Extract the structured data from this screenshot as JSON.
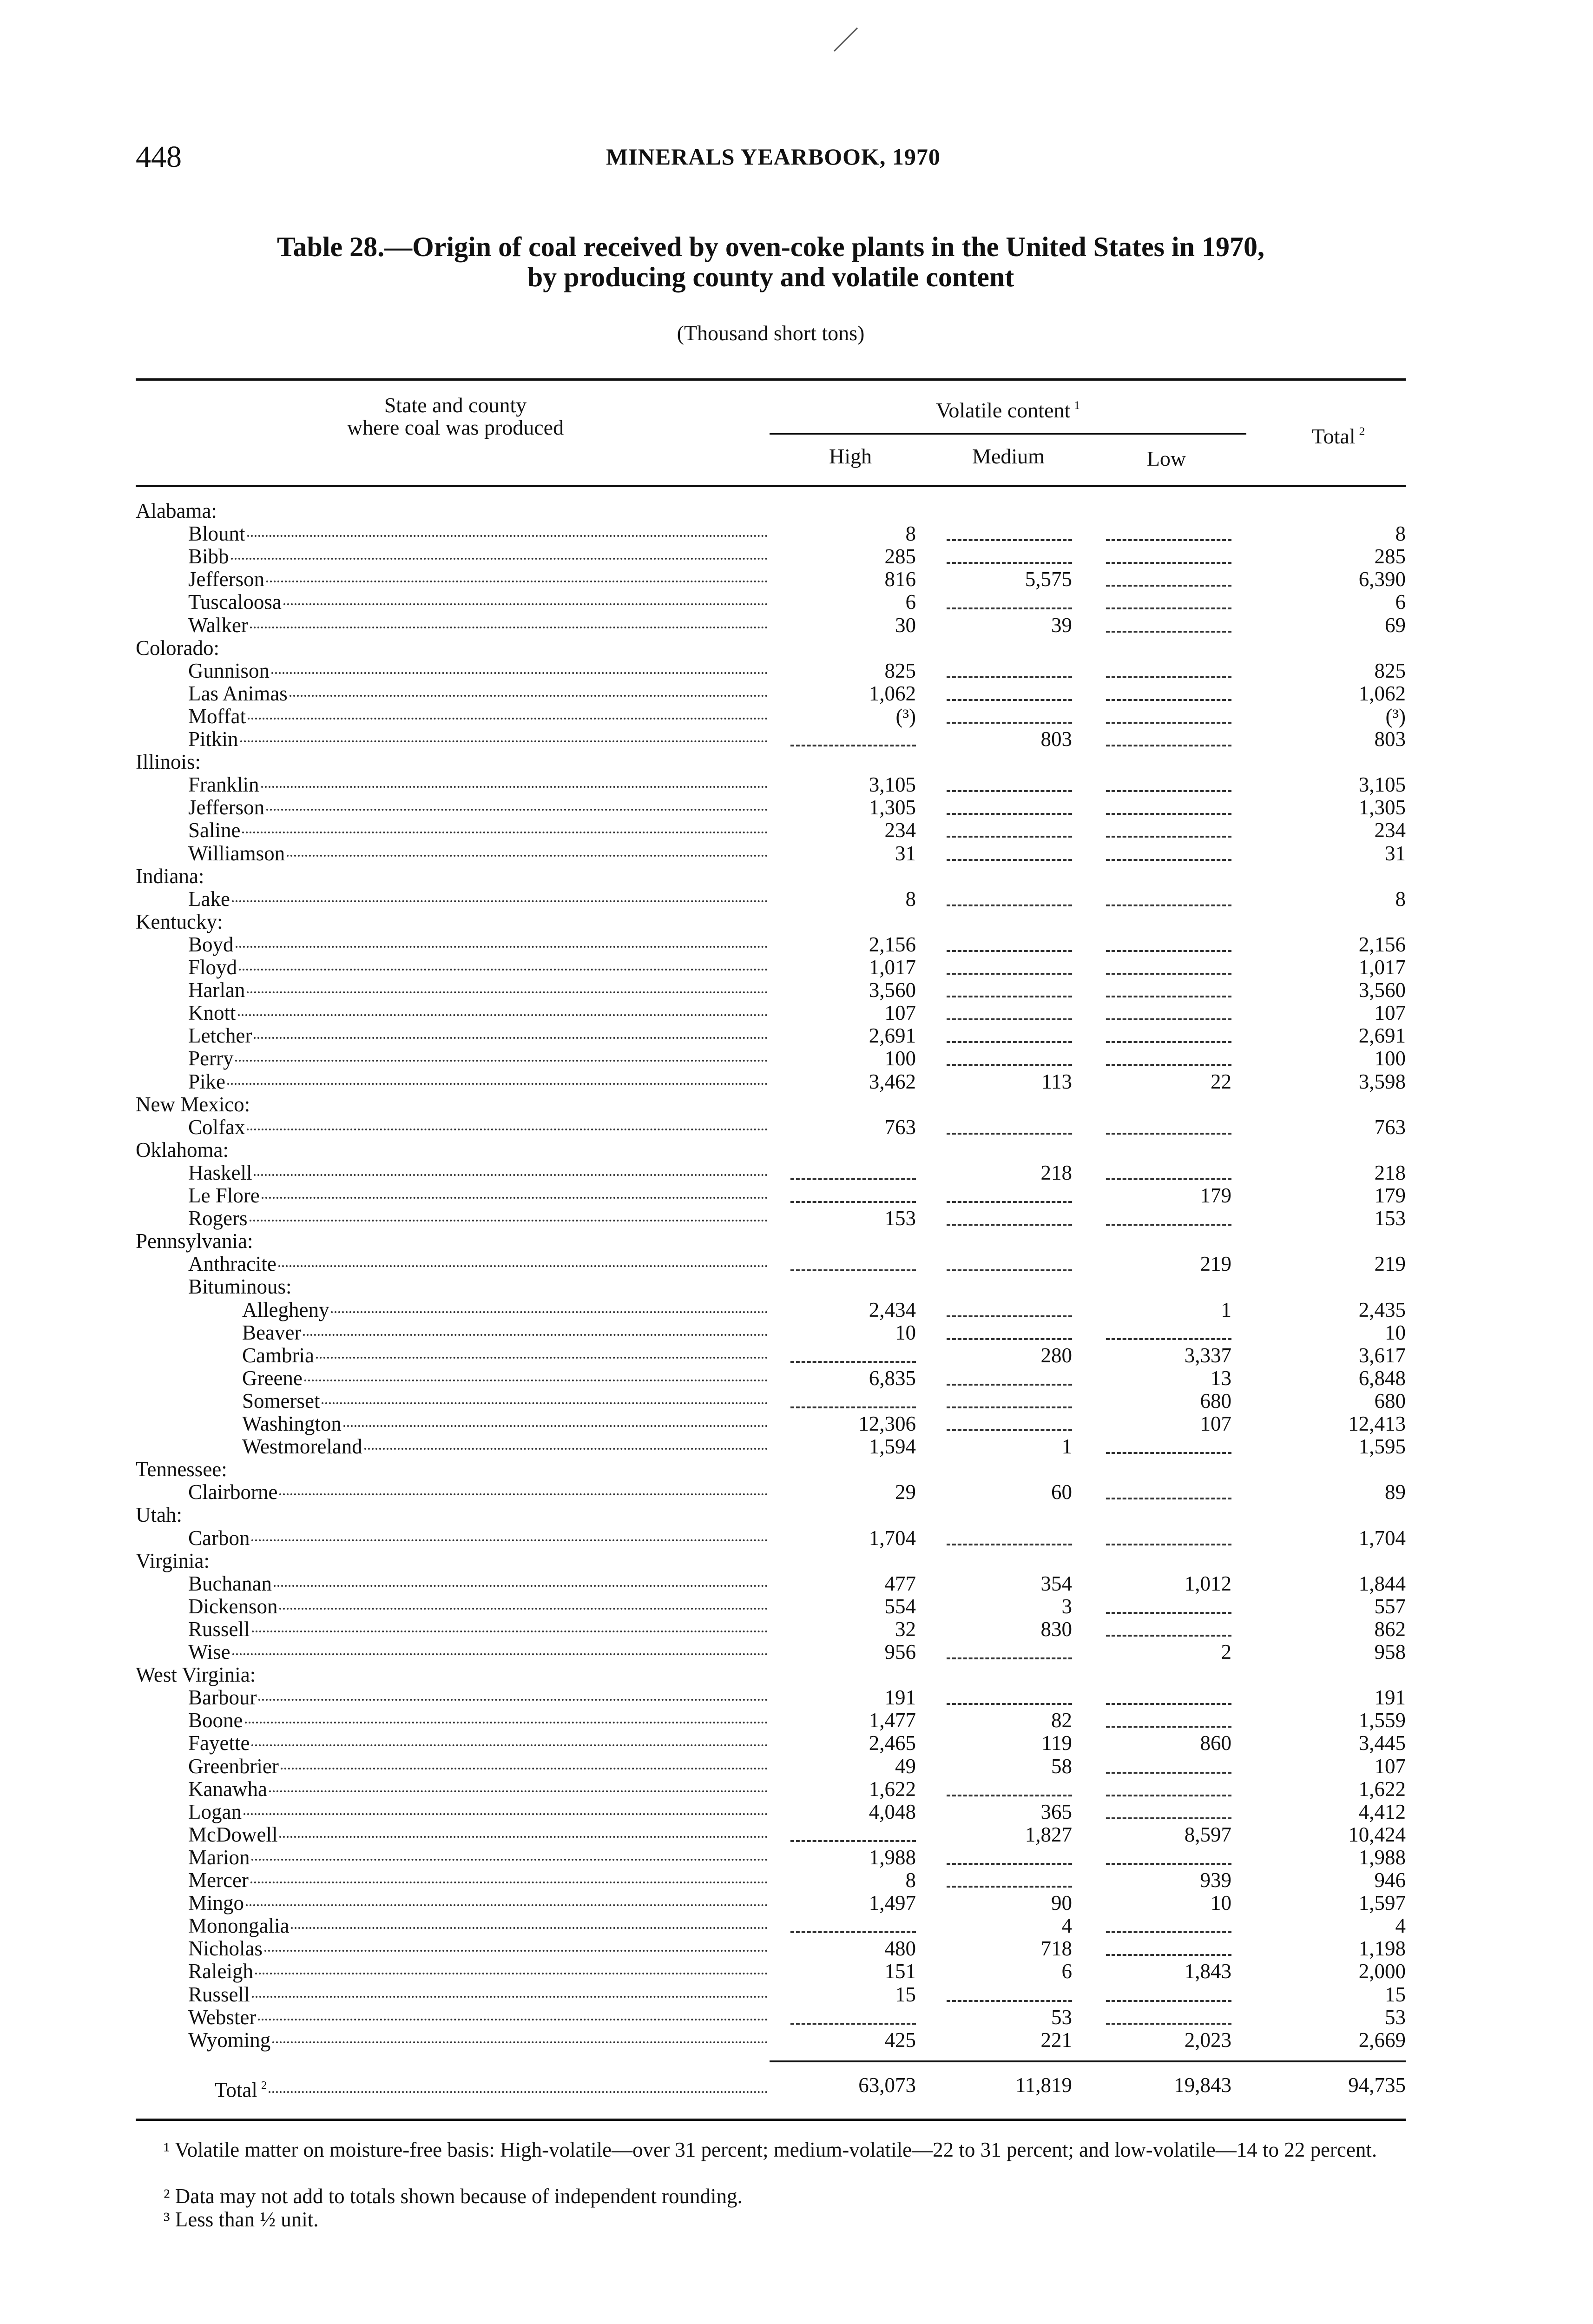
{
  "page": {
    "page_number": "448",
    "running_head": "MINERALS YEARBOOK, 1970",
    "title_line1": "Table 28.—Origin of coal received by oven-coke plants in the United States in 1970,",
    "title_line2": "by producing county and volatile content",
    "units": "(Thousand short tons)"
  },
  "table": {
    "headers": {
      "stub_line1": "State and county",
      "stub_line2": "where coal was produced",
      "volatile": "Volatile content",
      "volatile_note": "1",
      "high": "High",
      "medium": "Medium",
      "low": "Low",
      "total": "Total",
      "total_note": "2"
    },
    "rows": [
      {
        "label": "Alabama:",
        "level": 0
      },
      {
        "label": "Blount",
        "level": 1,
        "high": "8",
        "medium": null,
        "low": null,
        "total": "8"
      },
      {
        "label": "Bibb",
        "level": 1,
        "high": "285",
        "medium": null,
        "low": null,
        "total": "285"
      },
      {
        "label": "Jefferson",
        "level": 1,
        "high": "816",
        "medium": "5,575",
        "low": null,
        "total": "6,390"
      },
      {
        "label": "Tuscaloosa",
        "level": 1,
        "high": "6",
        "medium": null,
        "low": null,
        "total": "6"
      },
      {
        "label": "Walker",
        "level": 1,
        "high": "30",
        "medium": "39",
        "low": null,
        "total": "69"
      },
      {
        "label": "Colorado:",
        "level": 0
      },
      {
        "label": "Gunnison",
        "level": 1,
        "high": "825",
        "medium": null,
        "low": null,
        "total": "825"
      },
      {
        "label": "Las Animas",
        "level": 1,
        "high": "1,062",
        "medium": null,
        "low": null,
        "total": "1,062"
      },
      {
        "label": "Moffat",
        "level": 1,
        "high": "(³)",
        "medium": null,
        "low": null,
        "total": "(³)"
      },
      {
        "label": "Pitkin",
        "level": 1,
        "high": null,
        "medium": "803",
        "low": null,
        "total": "803"
      },
      {
        "label": "Illinois:",
        "level": 0
      },
      {
        "label": "Franklin",
        "level": 1,
        "high": "3,105",
        "medium": null,
        "low": null,
        "total": "3,105"
      },
      {
        "label": "Jefferson",
        "level": 1,
        "high": "1,305",
        "medium": null,
        "low": null,
        "total": "1,305"
      },
      {
        "label": "Saline",
        "level": 1,
        "high": "234",
        "medium": null,
        "low": null,
        "total": "234"
      },
      {
        "label": "Williamson",
        "level": 1,
        "high": "31",
        "medium": null,
        "low": null,
        "total": "31"
      },
      {
        "label": "Indiana:",
        "level": 0
      },
      {
        "label": "Lake",
        "level": 1,
        "high": "8",
        "medium": null,
        "low": null,
        "total": "8"
      },
      {
        "label": "Kentucky:",
        "level": 0
      },
      {
        "label": "Boyd",
        "level": 1,
        "high": "2,156",
        "medium": null,
        "low": null,
        "total": "2,156"
      },
      {
        "label": "Floyd",
        "level": 1,
        "high": "1,017",
        "medium": null,
        "low": null,
        "total": "1,017"
      },
      {
        "label": "Harlan",
        "level": 1,
        "high": "3,560",
        "medium": null,
        "low": null,
        "total": "3,560"
      },
      {
        "label": "Knott",
        "level": 1,
        "high": "107",
        "medium": null,
        "low": null,
        "total": "107"
      },
      {
        "label": "Letcher",
        "level": 1,
        "high": "2,691",
        "medium": null,
        "low": null,
        "total": "2,691"
      },
      {
        "label": "Perry",
        "level": 1,
        "high": "100",
        "medium": null,
        "low": null,
        "total": "100"
      },
      {
        "label": "Pike",
        "level": 1,
        "high": "3,462",
        "medium": "113",
        "low": "22",
        "total": "3,598"
      },
      {
        "label": "New Mexico:",
        "level": 0
      },
      {
        "label": "Colfax",
        "level": 1,
        "high": "763",
        "medium": null,
        "low": null,
        "total": "763"
      },
      {
        "label": "Oklahoma:",
        "level": 0
      },
      {
        "label": "Haskell",
        "level": 1,
        "high": null,
        "medium": "218",
        "low": null,
        "total": "218"
      },
      {
        "label": "Le Flore",
        "level": 1,
        "high": null,
        "medium": null,
        "low": "179",
        "total": "179"
      },
      {
        "label": "Rogers",
        "level": 1,
        "high": "153",
        "medium": null,
        "low": null,
        "total": "153"
      },
      {
        "label": "Pennsylvania:",
        "level": 0
      },
      {
        "label": "Anthracite",
        "level": 1,
        "high": null,
        "medium": null,
        "low": "219",
        "total": "219"
      },
      {
        "label": "Bituminous:",
        "level": 1
      },
      {
        "label": "Allegheny",
        "level": 2,
        "high": "2,434",
        "medium": null,
        "low": "1",
        "total": "2,435"
      },
      {
        "label": "Beaver",
        "level": 2,
        "high": "10",
        "medium": null,
        "low": null,
        "total": "10"
      },
      {
        "label": "Cambria",
        "level": 2,
        "high": null,
        "medium": "280",
        "low": "3,337",
        "total": "3,617"
      },
      {
        "label": "Greene",
        "level": 2,
        "high": "6,835",
        "medium": null,
        "low": "13",
        "total": "6,848"
      },
      {
        "label": "Somerset",
        "level": 2,
        "high": null,
        "medium": null,
        "low": "680",
        "total": "680"
      },
      {
        "label": "Washington",
        "level": 2,
        "high": "12,306",
        "medium": null,
        "low": "107",
        "total": "12,413"
      },
      {
        "label": "Westmoreland",
        "level": 2,
        "high": "1,594",
        "medium": "1",
        "low": null,
        "total": "1,595"
      },
      {
        "label": "Tennessee:",
        "level": 0
      },
      {
        "label": "Clairborne",
        "level": 1,
        "high": "29",
        "medium": "60",
        "low": null,
        "total": "89"
      },
      {
        "label": "Utah:",
        "level": 0
      },
      {
        "label": "Carbon",
        "level": 1,
        "high": "1,704",
        "medium": null,
        "low": null,
        "total": "1,704"
      },
      {
        "label": "Virginia:",
        "level": 0
      },
      {
        "label": "Buchanan",
        "level": 1,
        "high": "477",
        "medium": "354",
        "low": "1,012",
        "total": "1,844"
      },
      {
        "label": "Dickenson",
        "level": 1,
        "high": "554",
        "medium": "3",
        "low": null,
        "total": "557"
      },
      {
        "label": "Russell",
        "level": 1,
        "high": "32",
        "medium": "830",
        "low": null,
        "total": "862"
      },
      {
        "label": "Wise",
        "level": 1,
        "high": "956",
        "medium": null,
        "low": "2",
        "total": "958"
      },
      {
        "label": "West Virginia:",
        "level": 0
      },
      {
        "label": "Barbour",
        "level": 1,
        "high": "191",
        "medium": null,
        "low": null,
        "total": "191"
      },
      {
        "label": "Boone",
        "level": 1,
        "high": "1,477",
        "medium": "82",
        "low": null,
        "total": "1,559"
      },
      {
        "label": "Fayette",
        "level": 1,
        "high": "2,465",
        "medium": "119",
        "low": "860",
        "total": "3,445"
      },
      {
        "label": "Greenbrier",
        "level": 1,
        "high": "49",
        "medium": "58",
        "low": null,
        "total": "107"
      },
      {
        "label": "Kanawha",
        "level": 1,
        "high": "1,622",
        "medium": null,
        "low": null,
        "total": "1,622"
      },
      {
        "label": "Logan",
        "level": 1,
        "high": "4,048",
        "medium": "365",
        "low": null,
        "total": "4,412"
      },
      {
        "label": "McDowell",
        "level": 1,
        "high": null,
        "medium": "1,827",
        "low": "8,597",
        "total": "10,424"
      },
      {
        "label": "Marion",
        "level": 1,
        "high": "1,988",
        "medium": null,
        "low": null,
        "total": "1,988"
      },
      {
        "label": "Mercer",
        "level": 1,
        "high": "8",
        "medium": null,
        "low": "939",
        "total": "946"
      },
      {
        "label": "Mingo",
        "level": 1,
        "high": "1,497",
        "medium": "90",
        "low": "10",
        "total": "1,597"
      },
      {
        "label": "Monongalia",
        "level": 1,
        "high": null,
        "medium": "4",
        "low": null,
        "total": "4"
      },
      {
        "label": "Nicholas",
        "level": 1,
        "high": "480",
        "medium": "718",
        "low": null,
        "total": "1,198"
      },
      {
        "label": "Raleigh",
        "level": 1,
        "high": "151",
        "medium": "6",
        "low": "1,843",
        "total": "2,000"
      },
      {
        "label": "Russell",
        "level": 1,
        "high": "15",
        "medium": null,
        "low": null,
        "total": "15"
      },
      {
        "label": "Webster",
        "level": 1,
        "high": null,
        "medium": "53",
        "low": null,
        "total": "53"
      },
      {
        "label": "Wyoming",
        "level": 1,
        "high": "425",
        "medium": "221",
        "low": "2,023",
        "total": "2,669"
      }
    ],
    "total_row": {
      "label": "Total",
      "note": "2",
      "high": "63,073",
      "medium": "11,819",
      "low": "19,843",
      "total": "94,735"
    }
  },
  "footnotes": [
    "¹ Volatile matter on moisture-free basis: High-volatile—over 31 percent; medium-volatile—22 to 31 percent; and low-volatile—14 to 22 percent.",
    "² Data may not add to totals shown because of independent rounding.",
    "³ Less than ½ unit."
  ]
}
